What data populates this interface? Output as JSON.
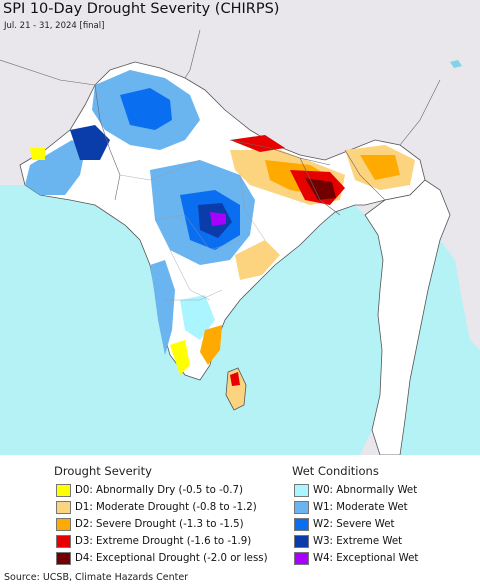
{
  "header": {
    "title": "SPI 10-Day Drought Severity (CHIRPS)",
    "subtitle": "Jul. 21 - 31, 2024 [final]"
  },
  "colors": {
    "ocean": "#b4f2f6",
    "land_background": "#e9e6ec",
    "normal_land": "#ffffff",
    "border": "#555555"
  },
  "legend": {
    "drought_heading": "Drought Severity",
    "wet_heading": "Wet Conditions",
    "drought_items": [
      {
        "label": "D0: Abnormally Dry (-0.5 to -0.7)",
        "color": "#ffff00"
      },
      {
        "label": "D1: Moderate Drought (-0.8 to -1.2)",
        "color": "#fcd37f"
      },
      {
        "label": "D2: Severe Drought (-1.3 to -1.5)",
        "color": "#ffaa00"
      },
      {
        "label": "D3: Extreme Drought (-1.6 to -1.9)",
        "color": "#e60000"
      },
      {
        "label": "D4: Exceptional Drought (-2.0 or less)",
        "color": "#730000"
      }
    ],
    "wet_items": [
      {
        "label": "W0: Abnormally Wet",
        "color": "#aaf5ff"
      },
      {
        "label": "W1: Moderate Wet",
        "color": "#6ab4f0"
      },
      {
        "label": "W2: Severe Wet",
        "color": "#0a6ef0"
      },
      {
        "label": "W3: Extreme Wet",
        "color": "#0a3caa"
      },
      {
        "label": "W4: Exceptional Wet",
        "color": "#aa00ff"
      }
    ]
  },
  "footer": {
    "source": "Source: UCSB, Climate Hazards Center"
  }
}
